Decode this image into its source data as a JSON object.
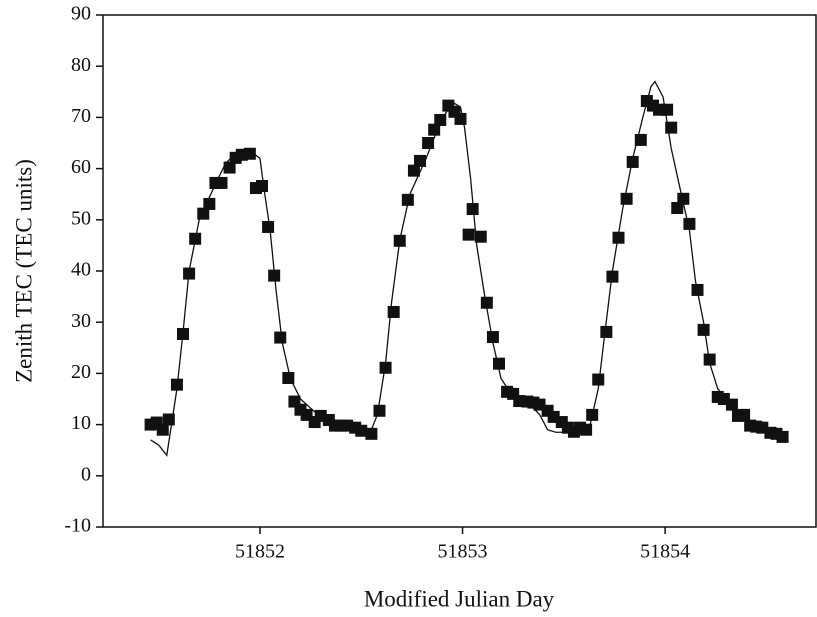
{
  "chart_data": {
    "type": "scatter",
    "x_label": "Modified Julian Day",
    "y_label": "Zenith TEC (TEC units)",
    "xlim": [
      51851.225,
      51854.745
    ],
    "ylim": [
      -10,
      90
    ],
    "xticks": [
      51852,
      51853,
      51854
    ],
    "yticks": [
      -10,
      0,
      10,
      20,
      30,
      40,
      50,
      60,
      70,
      80,
      90
    ],
    "series": [
      {
        "type": "scatter",
        "marker": "square",
        "color": "#111111",
        "x": [
          51851.46,
          51851.49,
          51851.52,
          51851.55,
          51851.59,
          51851.62,
          51851.65,
          51851.68,
          51851.72,
          51851.75,
          51851.78,
          51851.81,
          51851.85,
          51851.88,
          51851.91,
          51851.95,
          51851.98,
          51852.01,
          51852.04,
          51852.07,
          51852.1,
          51852.14,
          51852.17,
          51852.2,
          51852.23,
          51852.27,
          51852.3,
          51852.34,
          51852.37,
          51852.4,
          51852.43,
          51852.47,
          51852.5,
          51852.55,
          51852.59,
          51852.62,
          51852.66,
          51852.69,
          51852.73,
          51852.76,
          51852.79,
          51852.83,
          51852.86,
          51852.89,
          51852.93,
          51852.96,
          51852.99,
          51853.03,
          51853.05,
          51853.09,
          51853.12,
          51853.15,
          51853.18,
          51853.22,
          51853.25,
          51853.28,
          51853.32,
          51853.35,
          51853.38,
          51853.42,
          51853.45,
          51853.49,
          51853.52,
          51853.55,
          51853.58,
          51853.61,
          51853.64,
          51853.67,
          51853.71,
          51853.74,
          51853.77,
          51853.81,
          51853.84,
          51853.88,
          51853.91,
          51853.94,
          51853.97,
          51854.01,
          51854.03,
          51854.06,
          51854.09,
          51854.12,
          51854.16,
          51854.19,
          51854.22,
          51854.26,
          51854.29,
          51854.33,
          51854.36,
          51854.39,
          51854.42,
          51854.45,
          51854.48,
          51854.52,
          51854.55,
          51854.58
        ],
        "values": [
          10.0,
          10.4,
          9.0,
          11.0,
          17.8,
          27.7,
          39.5,
          46.3,
          51.2,
          53.1,
          57.2,
          57.2,
          60.2,
          62.1,
          62.7,
          62.9,
          56.2,
          56.6,
          48.6,
          39.1,
          27.0,
          19.1,
          14.5,
          12.9,
          11.9,
          10.5,
          11.7,
          10.9,
          9.8,
          9.8,
          9.8,
          9.4,
          8.8,
          8.2,
          12.7,
          21.1,
          32.0,
          45.9,
          53.9,
          59.6,
          61.5,
          65.0,
          67.6,
          69.5,
          72.3,
          71.1,
          69.7,
          47.1,
          52.1,
          46.7,
          33.8,
          27.1,
          21.9,
          16.4,
          16.0,
          14.6,
          14.5,
          14.3,
          13.9,
          12.7,
          11.5,
          10.5,
          9.4,
          8.6,
          9.4,
          9.0,
          11.9,
          18.8,
          28.1,
          38.9,
          46.5,
          54.1,
          61.3,
          65.6,
          73.2,
          72.3,
          71.5,
          71.5,
          68.0,
          52.3,
          54.1,
          49.2,
          36.3,
          28.5,
          22.7,
          15.4,
          15.0,
          13.9,
          11.7,
          11.9,
          9.8,
          9.6,
          9.4,
          8.4,
          8.2,
          7.6
        ]
      },
      {
        "type": "line",
        "color": "#111111",
        "x": [
          51851.46,
          51851.5,
          51851.54,
          51851.59,
          51851.62,
          51851.65,
          51851.7,
          51851.78,
          51851.83,
          51851.88,
          51851.95,
          51852.0,
          51852.02,
          51852.05,
          51852.08,
          51852.11,
          51852.15,
          51852.2,
          51852.27,
          51852.35,
          51852.45,
          51852.52,
          51852.55,
          51852.58,
          51852.62,
          51852.65,
          51852.69,
          51852.74,
          51852.82,
          51852.89,
          51852.95,
          51852.99,
          51853.01,
          51853.04,
          51853.07,
          51853.11,
          51853.15,
          51853.19,
          51853.24,
          51853.28,
          51853.33,
          51853.38,
          51853.42,
          51853.46,
          51853.51,
          51853.58,
          51853.63,
          51853.67,
          51853.7,
          51853.74,
          51853.79,
          51853.84,
          51853.89,
          51853.93,
          51853.95,
          51853.99,
          51854.03,
          51854.08,
          51854.12,
          51854.15,
          51854.19,
          51854.22,
          51854.26,
          51854.32,
          51854.4,
          51854.47,
          51854.54,
          51854.59
        ],
        "values": [
          7,
          6,
          4,
          17,
          28,
          40,
          50,
          57,
          61,
          63,
          63.5,
          62,
          56,
          48,
          36,
          26,
          19,
          15,
          12.5,
          11,
          10,
          9,
          9,
          12,
          22,
          34,
          46,
          55,
          62,
          69,
          73,
          72,
          68,
          58,
          45,
          35,
          26,
          19,
          16,
          15,
          14,
          12,
          9,
          8.5,
          8.5,
          9,
          10,
          17,
          27,
          40,
          52,
          62,
          70,
          76,
          77,
          74,
          64,
          55,
          48,
          38,
          30,
          22,
          17,
          14,
          11,
          9,
          8.5,
          8
        ]
      }
    ]
  }
}
